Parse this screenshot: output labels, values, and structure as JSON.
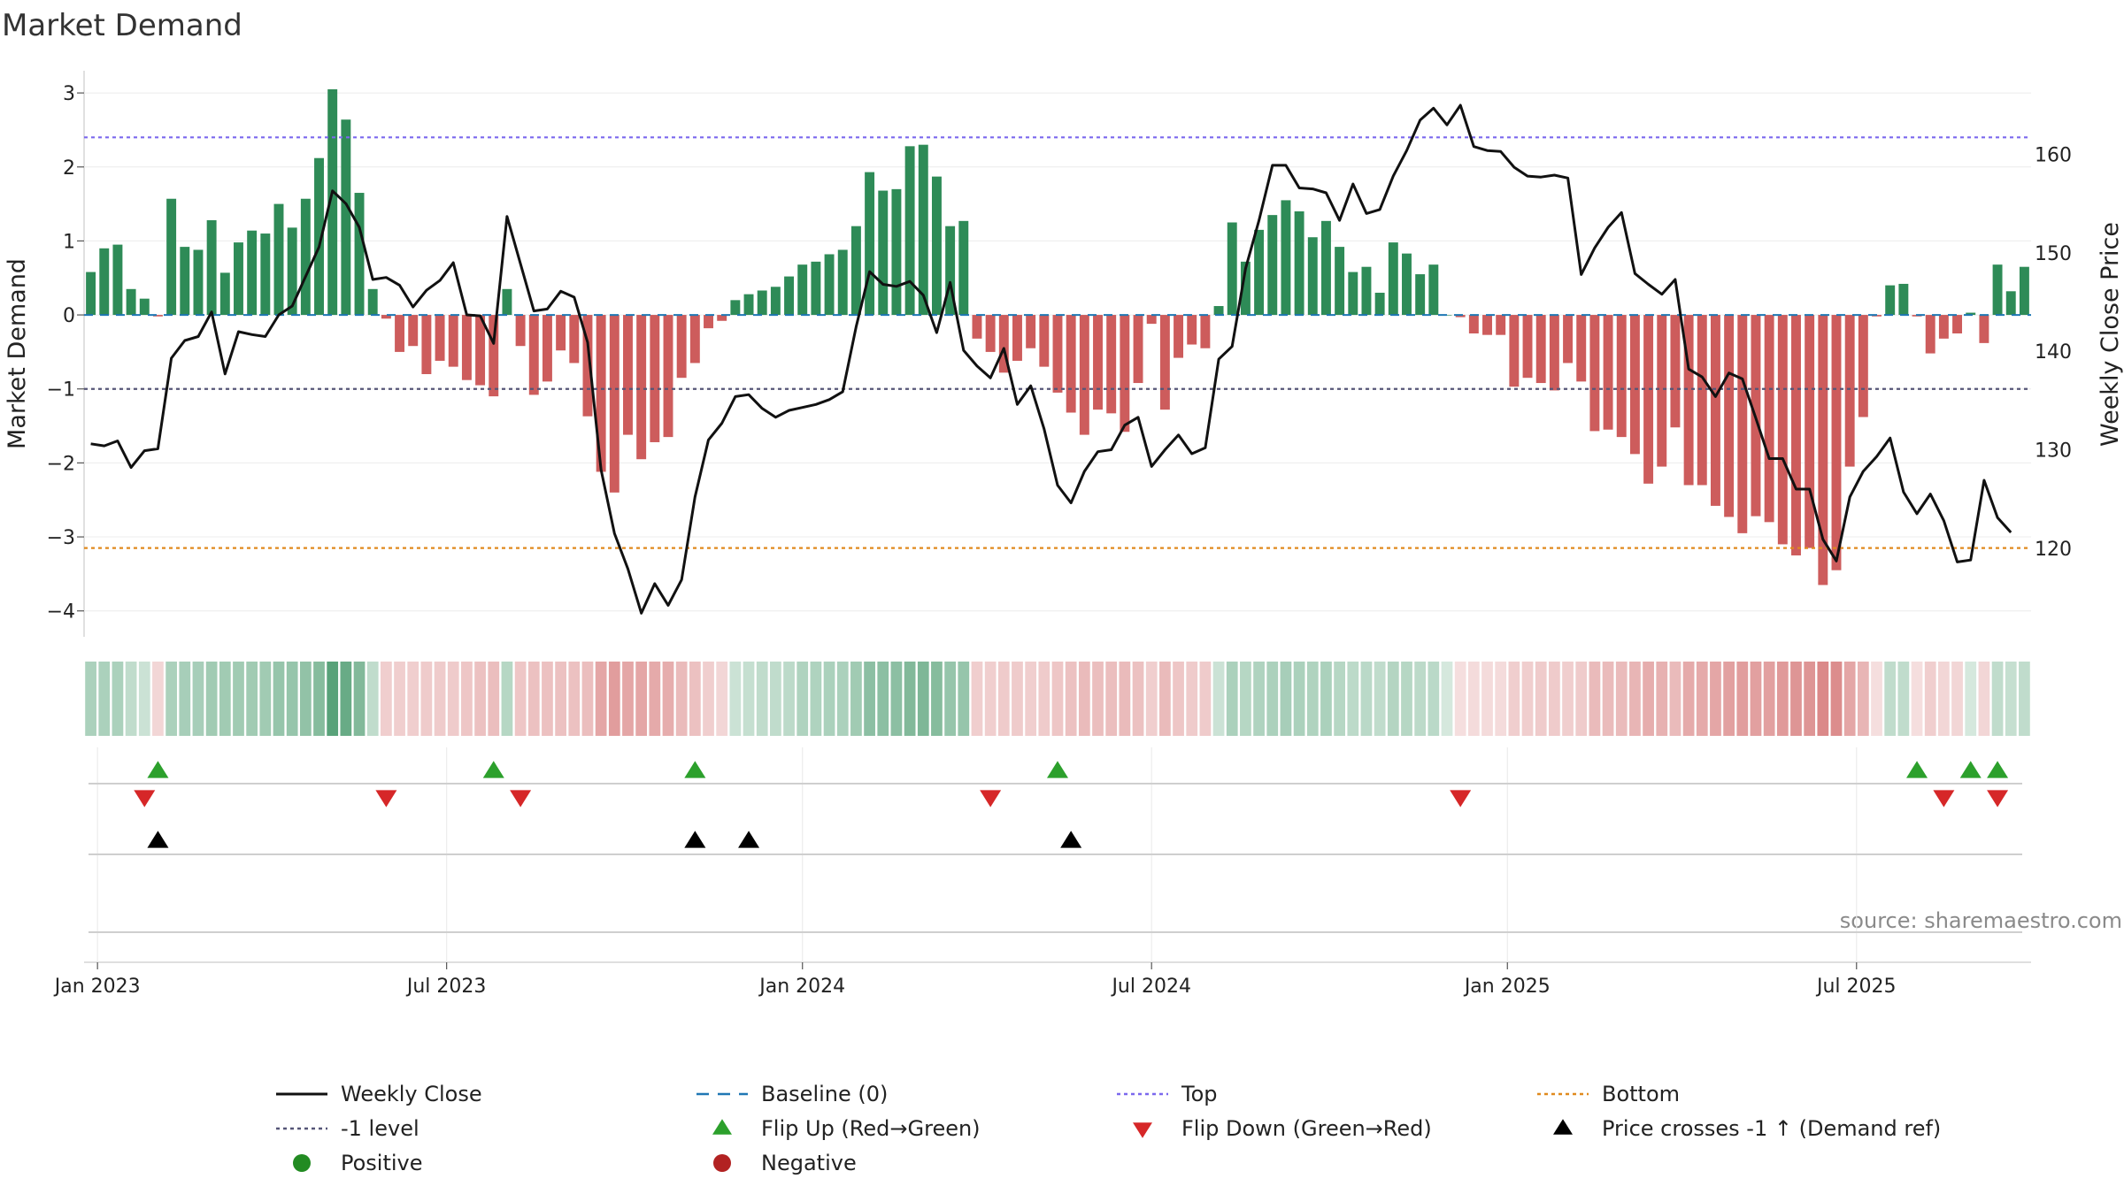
{
  "chart_data": {
    "type": "bar",
    "title": "Market Demand",
    "ylabel": "Market Demand",
    "y2label": "Weekly Close Price",
    "source": "source: sharemaestro.com",
    "ylim": [
      -4.35,
      3.3
    ],
    "y2lim": [
      111.0,
      168.5
    ],
    "yticks": [
      3,
      2,
      1,
      0,
      -1,
      -2,
      -3,
      -4
    ],
    "ytick_labels": [
      "3",
      "2",
      "1",
      "0",
      "−1",
      "−2",
      "−3",
      "−4"
    ],
    "y2ticks": [
      160,
      150,
      140,
      130,
      120
    ],
    "y2tick_labels": [
      "160",
      "150",
      "140",
      "130",
      "120"
    ],
    "xticks": [
      {
        "label": "Jan 2023",
        "index": 0.5
      },
      {
        "label": "Jul 2023",
        "index": 26.5
      },
      {
        "label": "Jan 2024",
        "index": 53
      },
      {
        "label": "Jul 2024",
        "index": 79
      },
      {
        "label": "Jan 2025",
        "index": 105.5
      },
      {
        "label": "Jul 2025",
        "index": 131.5
      }
    ],
    "n_weeks": 145,
    "demand": [
      0.58,
      0.9,
      0.95,
      0.35,
      0.22,
      -0.02,
      1.57,
      0.92,
      0.88,
      1.28,
      0.57,
      0.98,
      1.14,
      1.1,
      1.5,
      1.18,
      1.57,
      2.12,
      3.05,
      2.64,
      1.65,
      0.35,
      -0.05,
      -0.5,
      -0.42,
      -0.8,
      -0.62,
      -0.7,
      -0.88,
      -0.95,
      -1.1,
      0.35,
      -0.42,
      -1.08,
      -0.9,
      -0.48,
      -0.65,
      -1.37,
      -2.12,
      -2.4,
      -1.62,
      -1.95,
      -1.72,
      -1.65,
      -0.85,
      -0.65,
      -0.18,
      -0.08,
      0.2,
      0.28,
      0.33,
      0.38,
      0.52,
      0.68,
      0.72,
      0.82,
      0.88,
      1.2,
      1.93,
      1.68,
      1.7,
      2.28,
      2.3,
      1.87,
      1.2,
      1.27,
      -0.32,
      -0.5,
      -0.78,
      -0.62,
      -0.45,
      -0.7,
      -1.05,
      -1.32,
      -1.62,
      -1.28,
      -1.33,
      -1.58,
      -0.92,
      -0.12,
      -1.28,
      -0.58,
      -0.4,
      -0.45,
      0.12,
      1.25,
      0.72,
      1.15,
      1.35,
      1.55,
      1.4,
      1.05,
      1.27,
      0.92,
      0.58,
      0.65,
      0.3,
      0.98,
      0.83,
      0.55,
      0.68,
      0.0,
      -0.03,
      -0.25,
      -0.27,
      -0.27,
      -0.97,
      -0.85,
      -0.92,
      -1.02,
      -0.65,
      -0.9,
      -1.57,
      -1.55,
      -1.65,
      -1.88,
      -2.28,
      -2.05,
      -1.52,
      -2.3,
      -2.3,
      -2.58,
      -2.73,
      -2.95,
      -2.72,
      -2.8,
      -3.1,
      -3.25,
      -3.15,
      -3.65,
      -3.45,
      -2.05,
      -1.38,
      -0.02,
      0.4,
      0.42,
      -0.02,
      -0.52,
      -0.32,
      -0.25,
      0.03,
      -0.38,
      0.68,
      0.32,
      0.65
    ],
    "close": [
      130.6,
      130.4,
      130.9,
      128.2,
      129.9,
      130.1,
      139.3,
      141.1,
      141.5,
      144.0,
      137.7,
      142.0,
      141.7,
      141.5,
      143.7,
      144.6,
      147.6,
      150.6,
      156.3,
      155.0,
      152.6,
      147.3,
      147.5,
      146.7,
      144.5,
      146.2,
      147.2,
      149.0,
      143.7,
      143.6,
      140.8,
      153.7,
      148.9,
      144.1,
      144.3,
      146.1,
      145.5,
      140.9,
      128.0,
      121.5,
      117.9,
      113.4,
      116.4,
      114.2,
      116.8,
      125.2,
      131.0,
      132.7,
      135.4,
      135.6,
      134.2,
      133.3,
      134.0,
      134.3,
      134.6,
      135.1,
      135.9,
      142.5,
      148.1,
      146.8,
      146.6,
      147.1,
      145.7,
      141.9,
      147.0,
      140.1,
      138.5,
      137.3,
      140.3,
      134.6,
      136.5,
      132.1,
      126.4,
      124.6,
      127.8,
      129.8,
      130.0,
      132.5,
      133.3,
      128.3,
      130.0,
      131.5,
      129.6,
      130.2,
      139.2,
      140.5,
      148.4,
      153.3,
      158.9,
      158.9,
      156.6,
      156.5,
      156.1,
      153.3,
      157.0,
      154.0,
      154.4,
      157.8,
      160.4,
      163.5,
      164.7,
      163.0,
      165.0,
      160.8,
      160.4,
      160.3,
      158.7,
      157.8,
      157.7,
      157.9,
      157.6,
      147.8,
      150.5,
      152.6,
      154.1,
      147.9,
      146.8,
      145.8,
      147.3,
      138.2,
      137.4,
      135.4,
      137.8,
      137.2,
      133.2,
      129.1,
      129.1,
      126.0,
      126.0,
      120.9,
      118.7,
      125.2,
      127.8,
      129.3,
      131.2,
      125.7,
      123.5,
      125.5,
      122.8,
      118.6,
      118.8,
      126.9,
      123.1,
      121.6
    ],
    "shade_intensity": [
      0.4,
      0.4,
      0.4,
      0.3,
      0.25,
      0.25,
      0.4,
      0.42,
      0.42,
      0.45,
      0.45,
      0.45,
      0.45,
      0.45,
      0.5,
      0.5,
      0.52,
      0.58,
      0.8,
      0.72,
      0.6,
      0.3,
      0.3,
      0.3,
      0.3,
      0.32,
      0.32,
      0.32,
      0.35,
      0.38,
      0.4,
      0.35,
      0.35,
      0.38,
      0.38,
      0.38,
      0.38,
      0.4,
      0.55,
      0.6,
      0.55,
      0.55,
      0.52,
      0.5,
      0.42,
      0.38,
      0.3,
      0.25,
      0.25,
      0.28,
      0.3,
      0.3,
      0.32,
      0.38,
      0.38,
      0.4,
      0.4,
      0.45,
      0.55,
      0.55,
      0.55,
      0.6,
      0.62,
      0.58,
      0.5,
      0.5,
      0.3,
      0.3,
      0.32,
      0.32,
      0.3,
      0.32,
      0.35,
      0.38,
      0.42,
      0.4,
      0.4,
      0.42,
      0.38,
      0.3,
      0.42,
      0.35,
      0.32,
      0.32,
      0.25,
      0.4,
      0.35,
      0.38,
      0.4,
      0.42,
      0.4,
      0.38,
      0.4,
      0.35,
      0.32,
      0.33,
      0.3,
      0.36,
      0.35,
      0.32,
      0.33,
      0.2,
      0.2,
      0.22,
      0.22,
      0.22,
      0.3,
      0.3,
      0.32,
      0.32,
      0.3,
      0.32,
      0.42,
      0.42,
      0.42,
      0.45,
      0.5,
      0.48,
      0.42,
      0.52,
      0.52,
      0.55,
      0.58,
      0.6,
      0.58,
      0.58,
      0.62,
      0.65,
      0.65,
      0.72,
      0.7,
      0.55,
      0.45,
      0.2,
      0.3,
      0.3,
      0.2,
      0.3,
      0.25,
      0.25,
      0.2,
      0.25,
      0.3,
      0.28,
      0.3
    ],
    "top_level": 2.4,
    "bottom_level": -3.15,
    "minus_one_level": -1,
    "baseline_level": 0,
    "flip_up_indices": [
      5,
      30,
      45,
      72,
      136,
      140,
      142
    ],
    "flip_down_indices": [
      4,
      22,
      32,
      67,
      102,
      138,
      142
    ],
    "price_cross_indices": [
      5,
      45,
      49,
      73
    ],
    "colors": {
      "positive_bar": "#2e8b57",
      "negative_bar": "#cd5c5c",
      "close_line": "#111111",
      "baseline": "#1f77b4",
      "top_line": "#7b68ee",
      "bottom_line": "#e08a1e",
      "minus_one": "#555577",
      "flip_up": "#2ca02c",
      "flip_down": "#d62728",
      "cross": "#000000",
      "positive_dot": "#228b22",
      "negative_dot": "#b22222",
      "shade_green": [
        46,
        139,
        87
      ],
      "shade_red": [
        205,
        92,
        92
      ]
    },
    "legend": [
      {
        "label": "Weekly Close",
        "kind": "line"
      },
      {
        "label": "Baseline (0)",
        "kind": "dashed-blue"
      },
      {
        "label": "Top",
        "kind": "dotted-purple"
      },
      {
        "label": "Bottom",
        "kind": "dotted-orange"
      },
      {
        "label": "-1 level",
        "kind": "dotted-gray"
      },
      {
        "label": "Flip Up (Red→Green)",
        "kind": "triangle-up-green"
      },
      {
        "label": "Flip Down (Green→Red)",
        "kind": "triangle-down-red"
      },
      {
        "label": "Price crosses -1 ↑ (Demand ref)",
        "kind": "triangle-up-black"
      },
      {
        "label": "Positive",
        "kind": "dot-green"
      },
      {
        "label": "Negative",
        "kind": "dot-red"
      }
    ]
  }
}
